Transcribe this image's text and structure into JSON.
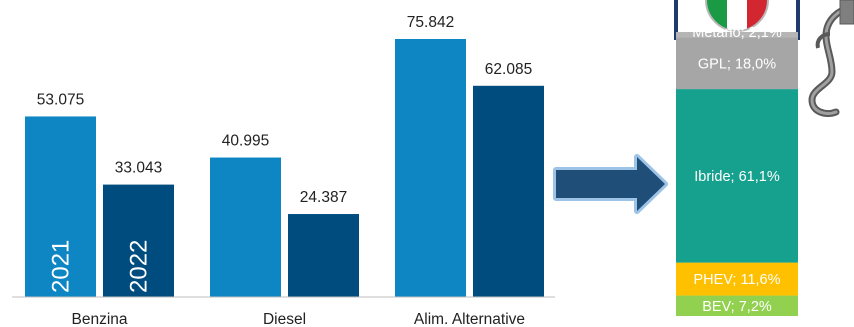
{
  "chart_data": [
    {
      "type": "bar",
      "categories": [
        "Benzina",
        "Diesel",
        "Alim. Alternative"
      ],
      "series": [
        {
          "name": "2021",
          "values": [
            53075,
            40995,
            75842
          ],
          "labels": [
            "53.075",
            "40.995",
            "75.842"
          ],
          "color": "#0E86C4"
        },
        {
          "name": "2022",
          "values": [
            33043,
            24387,
            62085
          ],
          "labels": [
            "33.043",
            "24.387",
            "62.085"
          ],
          "color": "#004C7F"
        }
      ],
      "ylim": [
        0,
        85000
      ],
      "grid": false,
      "legend": "inside bars"
    },
    {
      "type": "bar",
      "stacked": true,
      "segments": [
        {
          "label": "BEV; 7,2%",
          "value": 7.2,
          "color": "#92D050"
        },
        {
          "label": "PHEV; 11,6%",
          "value": 11.6,
          "color": "#FFC000"
        },
        {
          "label": "Ibride; 61,1%",
          "value": 61.1,
          "color": "#16A08E"
        },
        {
          "label": "GPL; 18,0%",
          "value": 18.0,
          "color": "#A6A6A6"
        },
        {
          "label": "Metano; 2,1%",
          "value": 2.1,
          "color": "#B5B5B5"
        }
      ]
    }
  ],
  "colors": {
    "axis": "#BFBFBF",
    "arrow": "#1F4E79",
    "arrow_glow": "#9DC3E6"
  },
  "icons": [
    "arrow-right-icon",
    "italy-flag-icon",
    "fuel-nozzle-icon"
  ]
}
